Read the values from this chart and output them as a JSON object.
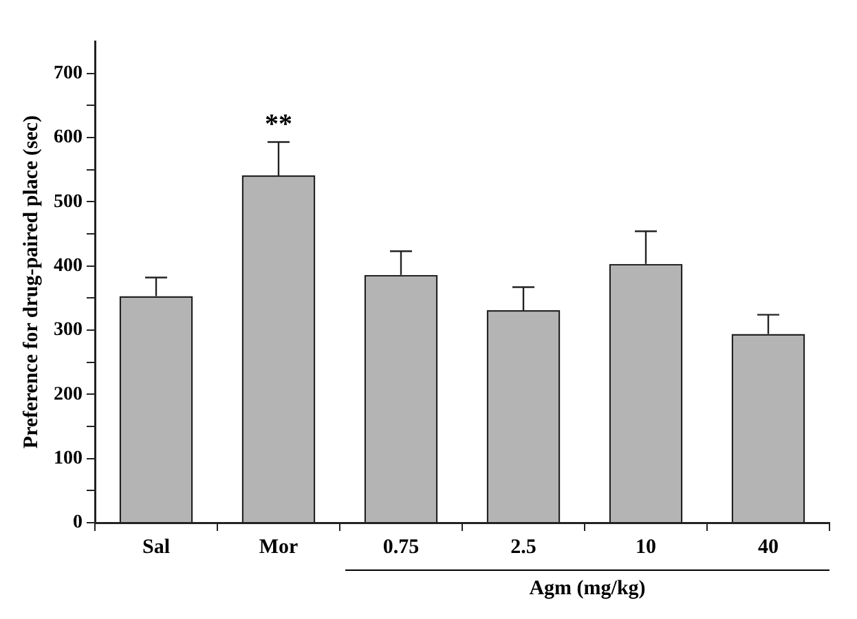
{
  "chart_data": {
    "type": "bar",
    "ylabel": "Preference for drug-paired place (sec)",
    "xlabel": "Agm (mg/kg)",
    "categories": [
      "Sal",
      "Mor",
      "0.75",
      "2.5",
      "10",
      "40"
    ],
    "values": [
      353,
      541,
      386,
      331,
      403,
      294
    ],
    "errors": [
      29,
      52,
      37,
      36,
      51,
      30
    ],
    "color": "#b4b4b4",
    "ylim": [
      0,
      750
    ],
    "yticks": [
      0,
      {
        "value": 50,
        "label": null
      },
      100,
      {
        "value": 150,
        "label": null
      },
      200,
      {
        "value": 250,
        "label": null
      },
      300,
      {
        "value": 350,
        "label": null
      },
      400,
      {
        "value": 450,
        "label": null
      },
      500,
      {
        "value": 550,
        "label": null
      },
      600,
      {
        "value": 650,
        "label": null
      },
      700
    ],
    "annotations": [
      {
        "text": "**",
        "x": "Mor",
        "y": 593
      }
    ],
    "grid": false,
    "legend": false
  }
}
